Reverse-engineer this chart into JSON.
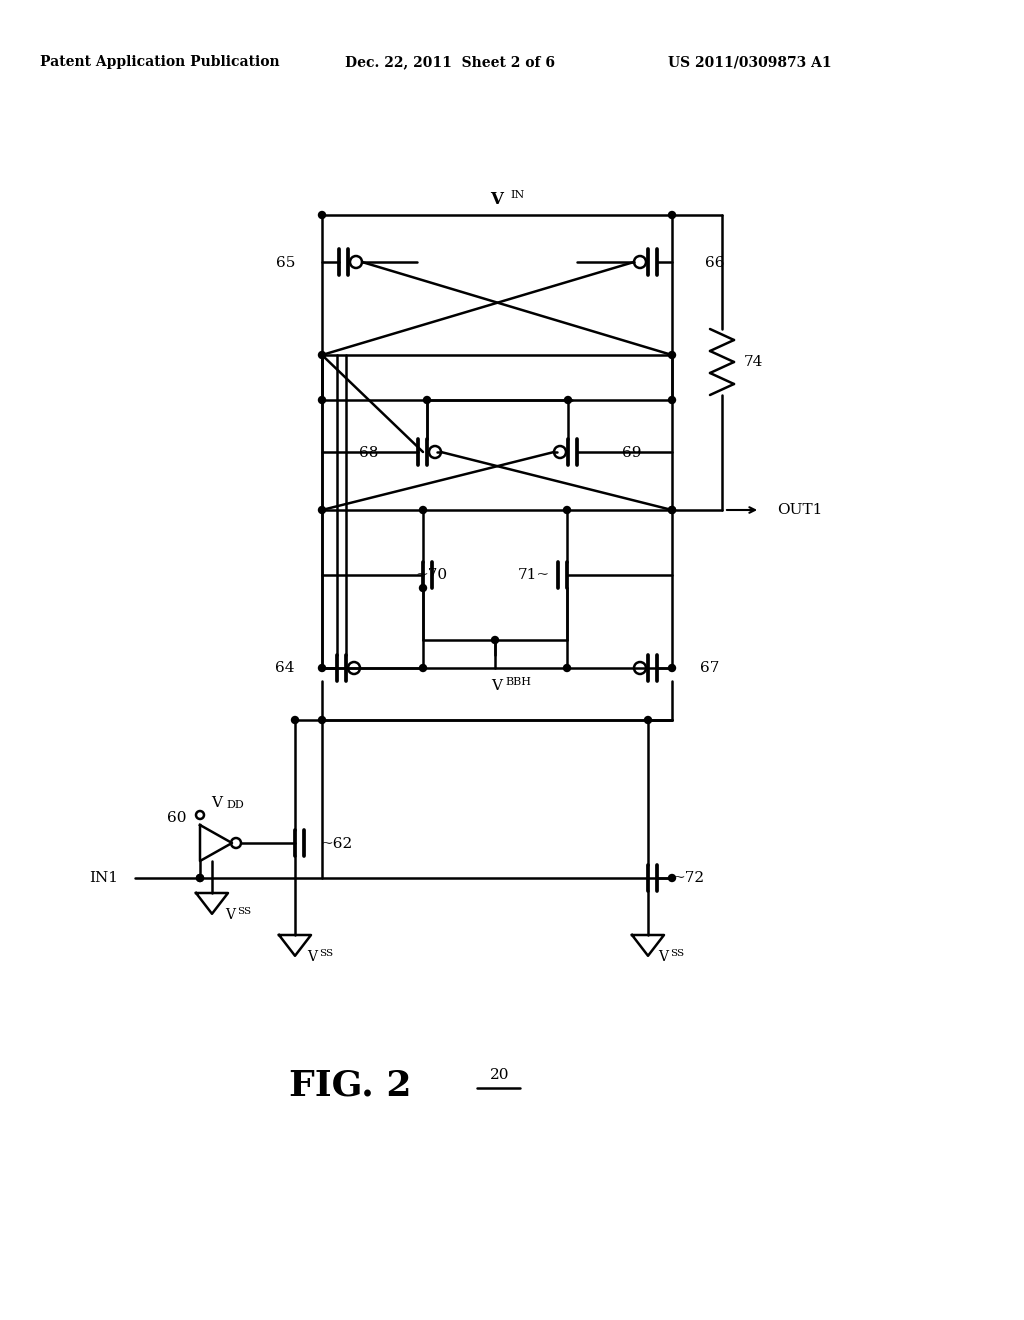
{
  "title": "",
  "header_left": "Patent Application Publication",
  "header_mid": "Dec. 22, 2011  Sheet 2 of 6",
  "header_right": "US 2011/0309873 A1",
  "fig_label": "FIG. 2",
  "fig_number": "20",
  "background": "#ffffff",
  "line_color": "#000000",
  "line_width": 1.8,
  "figsize": [
    10.24,
    13.2
  ],
  "dpi": 100
}
